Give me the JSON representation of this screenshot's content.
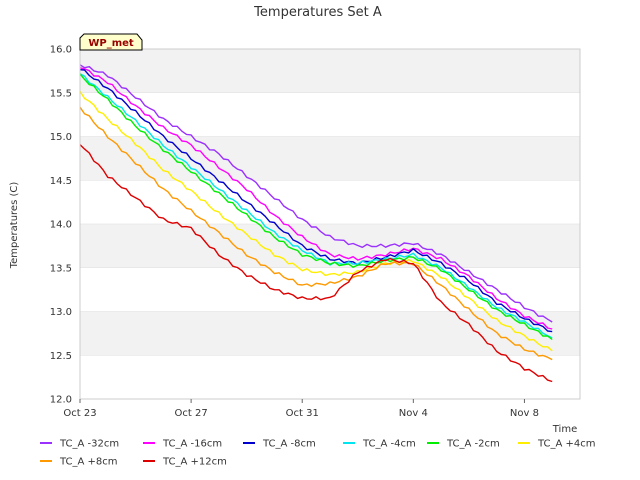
{
  "chart_data": {
    "type": "line",
    "title": "Temperatures Set A",
    "xlabel": "Time",
    "ylabel": "Temperatures (C)",
    "badge": "WP_met",
    "x_range": [
      "2023-10-23",
      "2023-11-10"
    ],
    "x_ticks": [
      {
        "date": "2023-10-23",
        "label": "Oct 23"
      },
      {
        "date": "2023-10-27",
        "label": "Oct 27"
      },
      {
        "date": "2023-10-31",
        "label": "Oct 31"
      },
      {
        "date": "2023-11-04",
        "label": "Nov 4"
      },
      {
        "date": "2023-11-08",
        "label": "Nov 8"
      }
    ],
    "ylim": [
      12.0,
      16.0
    ],
    "y_ticks": [
      "12.0",
      "12.5",
      "13.0",
      "13.5",
      "14.0",
      "14.5",
      "15.0",
      "15.5",
      "16.0"
    ],
    "grid": "horizontal bands",
    "legend_position": "bottom",
    "x": [
      "2023-10-23",
      "2023-10-24",
      "2023-10-25",
      "2023-10-26",
      "2023-10-27",
      "2023-10-28",
      "2023-10-29",
      "2023-10-30",
      "2023-10-31",
      "2023-11-01",
      "2023-11-02",
      "2023-11-03",
      "2023-11-04",
      "2023-11-05",
      "2023-11-06",
      "2023-11-07",
      "2023-11-08",
      "2023-11-09"
    ],
    "series": [
      {
        "name": "TC_A -32cm",
        "color": "#9b30ff",
        "values": [
          15.82,
          15.7,
          15.45,
          15.2,
          15.0,
          14.8,
          14.55,
          14.3,
          14.05,
          13.85,
          13.75,
          13.75,
          13.78,
          13.65,
          13.45,
          13.25,
          13.05,
          12.88
        ]
      },
      {
        "name": "TC_A -16cm",
        "color": "#ff00ff",
        "values": [
          15.8,
          15.62,
          15.35,
          15.1,
          14.9,
          14.65,
          14.4,
          14.1,
          13.85,
          13.65,
          13.6,
          13.65,
          13.72,
          13.6,
          13.4,
          13.15,
          12.95,
          12.8
        ]
      },
      {
        "name": "TC_A -8cm",
        "color": "#0000cc",
        "values": [
          15.78,
          15.55,
          15.28,
          15.0,
          14.75,
          14.5,
          14.25,
          14.0,
          13.75,
          13.6,
          13.55,
          13.62,
          13.7,
          13.55,
          13.35,
          13.1,
          12.92,
          12.77
        ]
      },
      {
        "name": "TC_A -4cm",
        "color": "#00e5ee",
        "values": [
          15.72,
          15.45,
          15.18,
          14.9,
          14.65,
          14.4,
          14.15,
          13.9,
          13.7,
          13.55,
          13.55,
          13.6,
          13.65,
          13.5,
          13.28,
          13.05,
          12.88,
          12.7
        ]
      },
      {
        "name": "TC_A -2cm",
        "color": "#00ee00",
        "values": [
          15.7,
          15.42,
          15.12,
          14.85,
          14.6,
          14.35,
          14.1,
          13.85,
          13.65,
          13.55,
          13.52,
          13.58,
          13.62,
          13.48,
          13.25,
          13.02,
          12.85,
          12.68
        ]
      },
      {
        "name": "TC_A +4cm",
        "color": "#ffee00",
        "values": [
          15.5,
          15.2,
          14.92,
          14.62,
          14.38,
          14.12,
          13.88,
          13.65,
          13.48,
          13.42,
          13.45,
          13.55,
          13.58,
          13.4,
          13.15,
          12.9,
          12.72,
          12.55
        ]
      },
      {
        "name": "TC_A +8cm",
        "color": "#ff9900",
        "values": [
          15.33,
          15.0,
          14.7,
          14.4,
          14.15,
          13.9,
          13.65,
          13.45,
          13.3,
          13.32,
          13.4,
          13.55,
          13.55,
          13.3,
          13.02,
          12.75,
          12.57,
          12.45
        ]
      },
      {
        "name": "TC_A +12cm",
        "color": "#dd0000",
        "values": [
          14.92,
          14.55,
          14.3,
          14.05,
          13.95,
          13.65,
          13.42,
          13.25,
          13.15,
          13.15,
          13.45,
          13.6,
          13.55,
          13.1,
          12.85,
          12.55,
          12.35,
          12.2
        ]
      }
    ]
  }
}
